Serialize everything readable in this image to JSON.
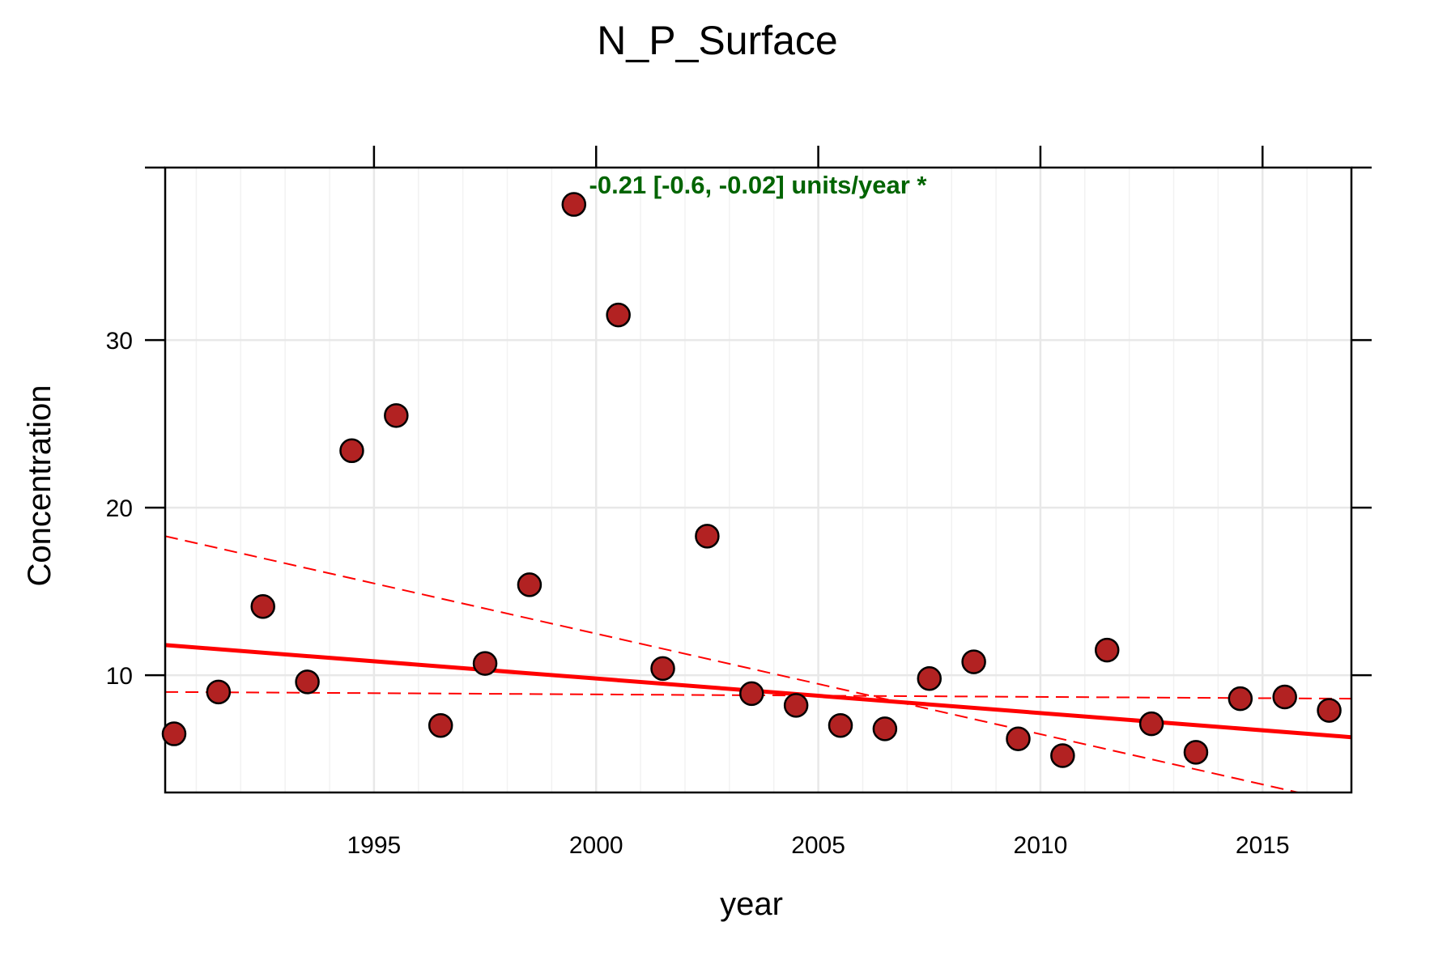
{
  "chart_data": {
    "type": "scatter",
    "title": "N_P_Surface",
    "xlabel": "year",
    "ylabel": "Concentration",
    "xlim": [
      1990.3,
      2017.0
    ],
    "ylim": [
      3.0,
      40.3
    ],
    "x_ticks": [
      {
        "value": 1995,
        "label": "1995"
      },
      {
        "value": 2000,
        "label": "2000"
      },
      {
        "value": 2005,
        "label": "2005"
      },
      {
        "value": 2010,
        "label": "2010"
      },
      {
        "value": 2015,
        "label": "2015"
      }
    ],
    "y_ticks": [
      {
        "value": 10,
        "label": "10"
      },
      {
        "value": 20,
        "label": "20"
      },
      {
        "value": 30,
        "label": "30"
      }
    ],
    "x_minor_grid_step": 1,
    "grid": true,
    "points": [
      {
        "x": 1990.5,
        "y": 6.5
      },
      {
        "x": 1991.5,
        "y": 9.0
      },
      {
        "x": 1992.5,
        "y": 14.1
      },
      {
        "x": 1993.5,
        "y": 9.6
      },
      {
        "x": 1994.5,
        "y": 23.4
      },
      {
        "x": 1995.5,
        "y": 25.5
      },
      {
        "x": 1996.5,
        "y": 7.0
      },
      {
        "x": 1997.5,
        "y": 10.7
      },
      {
        "x": 1998.5,
        "y": 15.4
      },
      {
        "x": 1999.5,
        "y": 38.1
      },
      {
        "x": 2000.5,
        "y": 31.5
      },
      {
        "x": 2001.5,
        "y": 10.4
      },
      {
        "x": 2002.5,
        "y": 18.3
      },
      {
        "x": 2003.5,
        "y": 8.9
      },
      {
        "x": 2004.5,
        "y": 8.2
      },
      {
        "x": 2005.5,
        "y": 7.0
      },
      {
        "x": 2006.5,
        "y": 6.8
      },
      {
        "x": 2007.5,
        "y": 9.8
      },
      {
        "x": 2008.5,
        "y": 10.8
      },
      {
        "x": 2009.5,
        "y": 6.2
      },
      {
        "x": 2010.5,
        "y": 5.2
      },
      {
        "x": 2011.5,
        "y": 11.5
      },
      {
        "x": 2012.5,
        "y": 7.1
      },
      {
        "x": 2013.5,
        "y": 5.4
      },
      {
        "x": 2014.5,
        "y": 8.6
      },
      {
        "x": 2015.5,
        "y": 8.7
      },
      {
        "x": 2016.5,
        "y": 7.9
      }
    ],
    "trend_lines": [
      {
        "style": "solid",
        "from": [
          1990.3,
          11.8
        ],
        "to": [
          2017.0,
          6.3
        ]
      },
      {
        "style": "dashed",
        "from": [
          1990.3,
          18.3
        ],
        "to": [
          2015.8,
          3.0
        ]
      },
      {
        "style": "dashed",
        "from": [
          1990.3,
          9.0
        ],
        "to": [
          2017.0,
          8.6
        ]
      }
    ],
    "annotation": {
      "text": "-0.21 [-0.6, -0.02] units/year *",
      "x": 2003.5,
      "y": 39.0
    },
    "colors": {
      "point_fill": "#b22222",
      "point_stroke": "#000000",
      "trend": "#ff0000",
      "annotation": "#006400",
      "grid": "#e8e8e8"
    }
  }
}
